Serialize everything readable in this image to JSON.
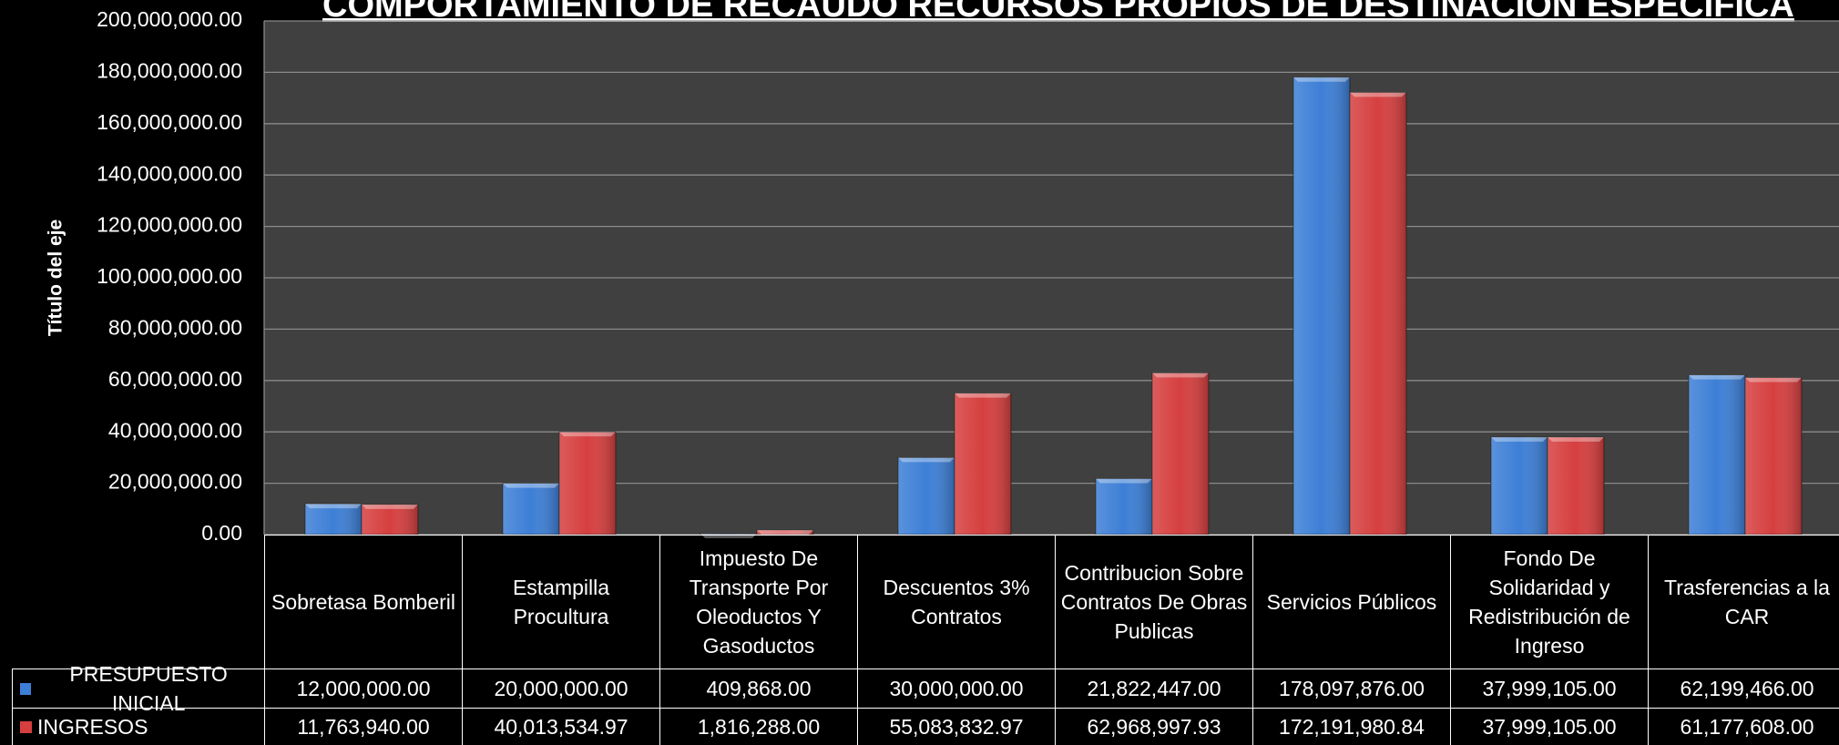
{
  "chart_data": {
    "type": "bar",
    "title": "COMPORTAMIENTO DE RECAUDO RECURSOS PROPIOS DE DESTINACION ESPECIFICA",
    "y_label": "Título del eje",
    "categories": [
      "Sobretasa Bomberil",
      "Estampilla Procultura",
      "Impuesto De Transporte Por Oleoductos Y Gasoductos",
      "Descuentos 3% Contratos",
      "Contribucion Sobre Contratos De Obras Publicas",
      "Servicios Públicos",
      "Fondo De Solidaridad y Redistribución de Ingreso",
      "Trasferencias a la CAR"
    ],
    "series": [
      {
        "name": "PRESUPUESTO INICIAL",
        "color": "#3d7fd6",
        "values": [
          12000000,
          20000000,
          409868,
          30000000,
          21822447,
          178097876,
          37999105,
          62199466
        ],
        "value_labels": [
          "12,000,000.00",
          "20,000,000.00",
          "409,868.00",
          "30,000,000.00",
          "21,822,447.00",
          "178,097,876.00",
          "37,999,105.00",
          "62,199,466.00"
        ]
      },
      {
        "name": "INGRESOS",
        "color": "#d63f3f",
        "values": [
          11763940,
          40013534.97,
          1816288,
          55083832.97,
          62968997.93,
          172191980.84,
          37999105,
          61177608
        ],
        "value_labels": [
          "11,763,940.00",
          "40,013,534.97",
          "1,816,288.00",
          "55,083,832.97",
          "62,968,997.93",
          "172,191,980.84",
          "37,999,105.00",
          "61,177,608.00"
        ]
      }
    ],
    "ylim": [
      0,
      200000000
    ],
    "yticks": [
      {
        "value": 0,
        "label": "0.00"
      },
      {
        "value": 20000000,
        "label": "20,000,000.00"
      },
      {
        "value": 40000000,
        "label": "40,000,000.00"
      },
      {
        "value": 60000000,
        "label": "60,000,000.00"
      },
      {
        "value": 80000000,
        "label": "80,000,000.00"
      },
      {
        "value": 100000000,
        "label": "100,000,000.00"
      },
      {
        "value": 120000000,
        "label": "120,000,000.00"
      },
      {
        "value": 140000000,
        "label": "140,000,000.00"
      },
      {
        "value": 160000000,
        "label": "160,000,000.00"
      },
      {
        "value": 180000000,
        "label": "180,000,000.00"
      },
      {
        "value": 200000000,
        "label": "200,000,000.00"
      }
    ],
    "grid": true
  }
}
